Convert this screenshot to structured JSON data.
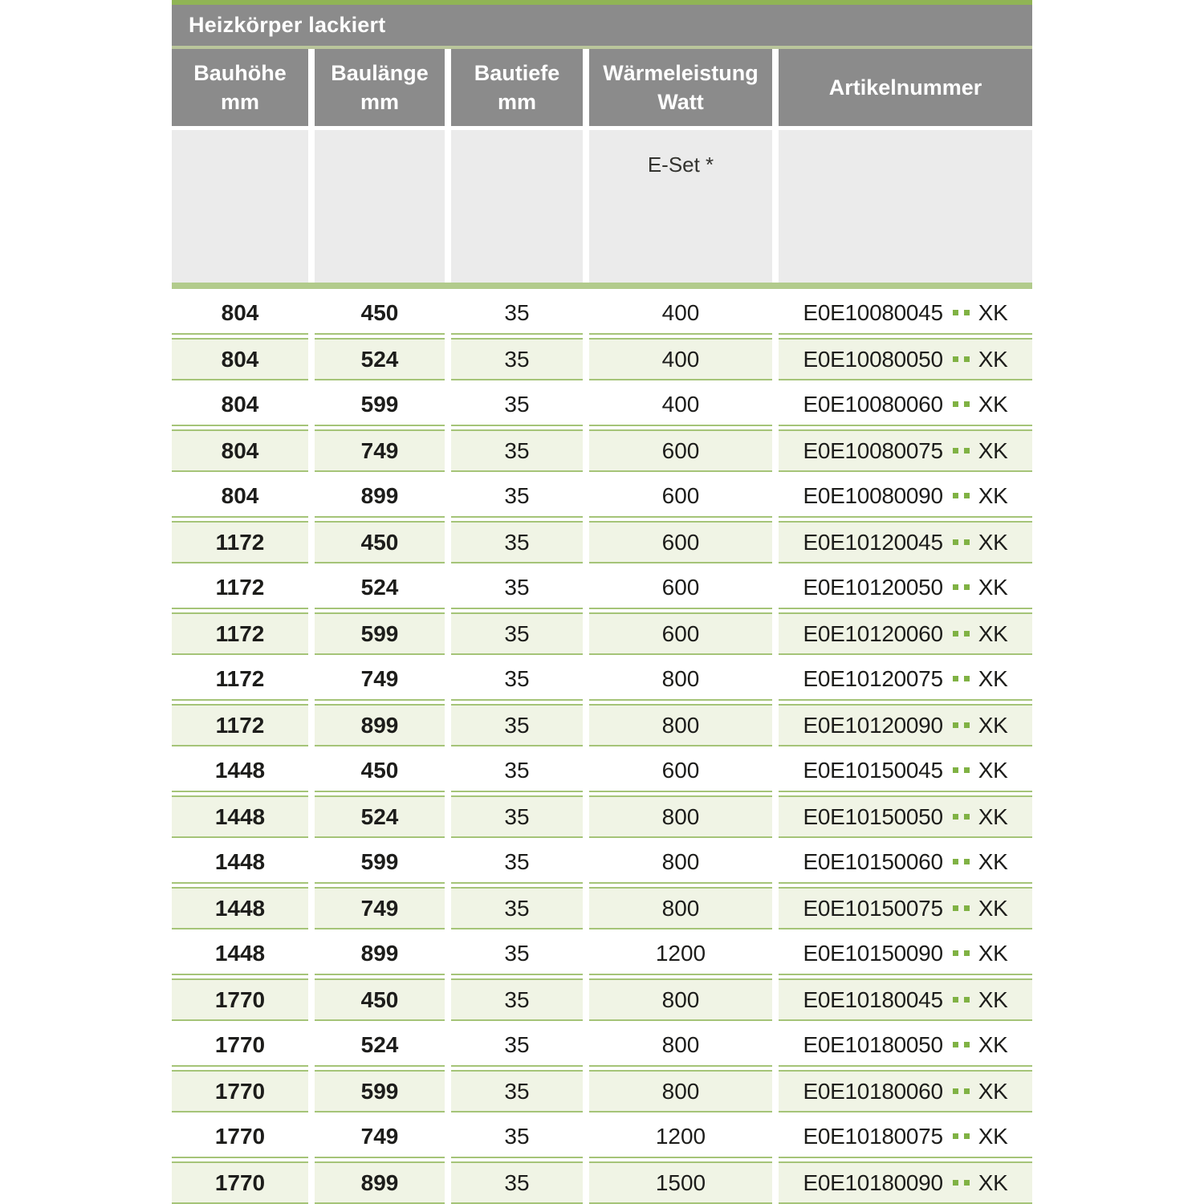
{
  "table": {
    "title": "Heizkörper lackiert",
    "columns": [
      {
        "line1": "Bauhöhe",
        "line2": "mm"
      },
      {
        "line1": "Baulänge",
        "line2": "mm"
      },
      {
        "line1": "Bautiefe",
        "line2": "mm"
      },
      {
        "line1": "Wärmeleistung",
        "line2": "Watt"
      },
      {
        "line1": "Artikelnummer",
        "line2": ""
      }
    ],
    "subheader_e_set": "E-Set *",
    "rows": [
      {
        "bauhoehe": "804",
        "baulaenge": "450",
        "bautiefe": "35",
        "watt": "400",
        "artikel_prefix": "E0E10080045",
        "artikel_suffix": "XK"
      },
      {
        "bauhoehe": "804",
        "baulaenge": "524",
        "bautiefe": "35",
        "watt": "400",
        "artikel_prefix": "E0E10080050",
        "artikel_suffix": "XK"
      },
      {
        "bauhoehe": "804",
        "baulaenge": "599",
        "bautiefe": "35",
        "watt": "400",
        "artikel_prefix": "E0E10080060",
        "artikel_suffix": "XK"
      },
      {
        "bauhoehe": "804",
        "baulaenge": "749",
        "bautiefe": "35",
        "watt": "600",
        "artikel_prefix": "E0E10080075",
        "artikel_suffix": "XK"
      },
      {
        "bauhoehe": "804",
        "baulaenge": "899",
        "bautiefe": "35",
        "watt": "600",
        "artikel_prefix": "E0E10080090",
        "artikel_suffix": "XK"
      },
      {
        "bauhoehe": "1172",
        "baulaenge": "450",
        "bautiefe": "35",
        "watt": "600",
        "artikel_prefix": "E0E10120045",
        "artikel_suffix": "XK"
      },
      {
        "bauhoehe": "1172",
        "baulaenge": "524",
        "bautiefe": "35",
        "watt": "600",
        "artikel_prefix": "E0E10120050",
        "artikel_suffix": "XK"
      },
      {
        "bauhoehe": "1172",
        "baulaenge": "599",
        "bautiefe": "35",
        "watt": "600",
        "artikel_prefix": "E0E10120060",
        "artikel_suffix": "XK"
      },
      {
        "bauhoehe": "1172",
        "baulaenge": "749",
        "bautiefe": "35",
        "watt": "800",
        "artikel_prefix": "E0E10120075",
        "artikel_suffix": "XK"
      },
      {
        "bauhoehe": "1172",
        "baulaenge": "899",
        "bautiefe": "35",
        "watt": "800",
        "artikel_prefix": "E0E10120090",
        "artikel_suffix": "XK"
      },
      {
        "bauhoehe": "1448",
        "baulaenge": "450",
        "bautiefe": "35",
        "watt": "600",
        "artikel_prefix": "E0E10150045",
        "artikel_suffix": "XK"
      },
      {
        "bauhoehe": "1448",
        "baulaenge": "524",
        "bautiefe": "35",
        "watt": "800",
        "artikel_prefix": "E0E10150050",
        "artikel_suffix": "XK"
      },
      {
        "bauhoehe": "1448",
        "baulaenge": "599",
        "bautiefe": "35",
        "watt": "800",
        "artikel_prefix": "E0E10150060",
        "artikel_suffix": "XK"
      },
      {
        "bauhoehe": "1448",
        "baulaenge": "749",
        "bautiefe": "35",
        "watt": "800",
        "artikel_prefix": "E0E10150075",
        "artikel_suffix": "XK"
      },
      {
        "bauhoehe": "1448",
        "baulaenge": "899",
        "bautiefe": "35",
        "watt": "1200",
        "artikel_prefix": "E0E10150090",
        "artikel_suffix": "XK"
      },
      {
        "bauhoehe": "1770",
        "baulaenge": "450",
        "bautiefe": "35",
        "watt": "800",
        "artikel_prefix": "E0E10180045",
        "artikel_suffix": "XK"
      },
      {
        "bauhoehe": "1770",
        "baulaenge": "524",
        "bautiefe": "35",
        "watt": "800",
        "artikel_prefix": "E0E10180050",
        "artikel_suffix": "XK"
      },
      {
        "bauhoehe": "1770",
        "baulaenge": "599",
        "bautiefe": "35",
        "watt": "800",
        "artikel_prefix": "E0E10180060",
        "artikel_suffix": "XK"
      },
      {
        "bauhoehe": "1770",
        "baulaenge": "749",
        "bautiefe": "35",
        "watt": "1200",
        "artikel_prefix": "E0E10180075",
        "artikel_suffix": "XK"
      },
      {
        "bauhoehe": "1770",
        "baulaenge": "899",
        "bautiefe": "35",
        "watt": "1500",
        "artikel_prefix": "E0E10180090",
        "artikel_suffix": "XK"
      }
    ]
  },
  "colors": {
    "top_bar_green": "#90b455",
    "pale_divider": "#b9c59b",
    "separator_band_green": "#b2cb8c",
    "row_border_green": "#a5c478",
    "tinted_row_bg": "#f0f4e5",
    "header_gray": "#8b8b8b",
    "subheader_gray": "#ebebeb",
    "text_dark": "#1d1d1b",
    "artikel_dot_green": "#80b244"
  }
}
